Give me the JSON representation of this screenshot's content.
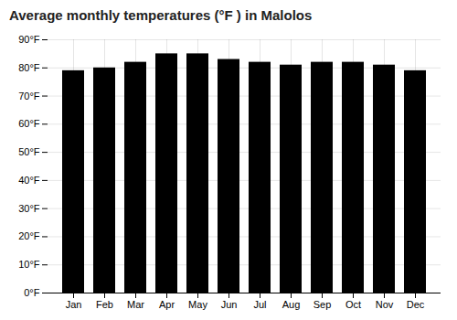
{
  "chart_data": {
    "type": "bar",
    "title": "Average monthly temperatures (°F ) in Malolos",
    "categories": [
      "Jan",
      "Feb",
      "Mar",
      "Apr",
      "May",
      "Jun",
      "Jul",
      "Aug",
      "Sep",
      "Oct",
      "Nov",
      "Dec"
    ],
    "values": [
      79,
      80,
      82,
      85,
      85,
      83,
      82,
      81,
      82,
      82,
      81,
      79
    ],
    "ylim": [
      0,
      90
    ],
    "yticks": [
      {
        "value": 0,
        "label": "0°F"
      },
      {
        "value": 10,
        "label": "10°F"
      },
      {
        "value": 20,
        "label": "20°F"
      },
      {
        "value": 30,
        "label": "30°F"
      },
      {
        "value": 40,
        "label": "40°F"
      },
      {
        "value": 50,
        "label": "50°F"
      },
      {
        "value": 60,
        "label": "60°F"
      },
      {
        "value": 70,
        "label": "70°F"
      },
      {
        "value": 80,
        "label": "80°F"
      },
      {
        "value": 90,
        "label": "90°F"
      }
    ],
    "grid": true
  }
}
